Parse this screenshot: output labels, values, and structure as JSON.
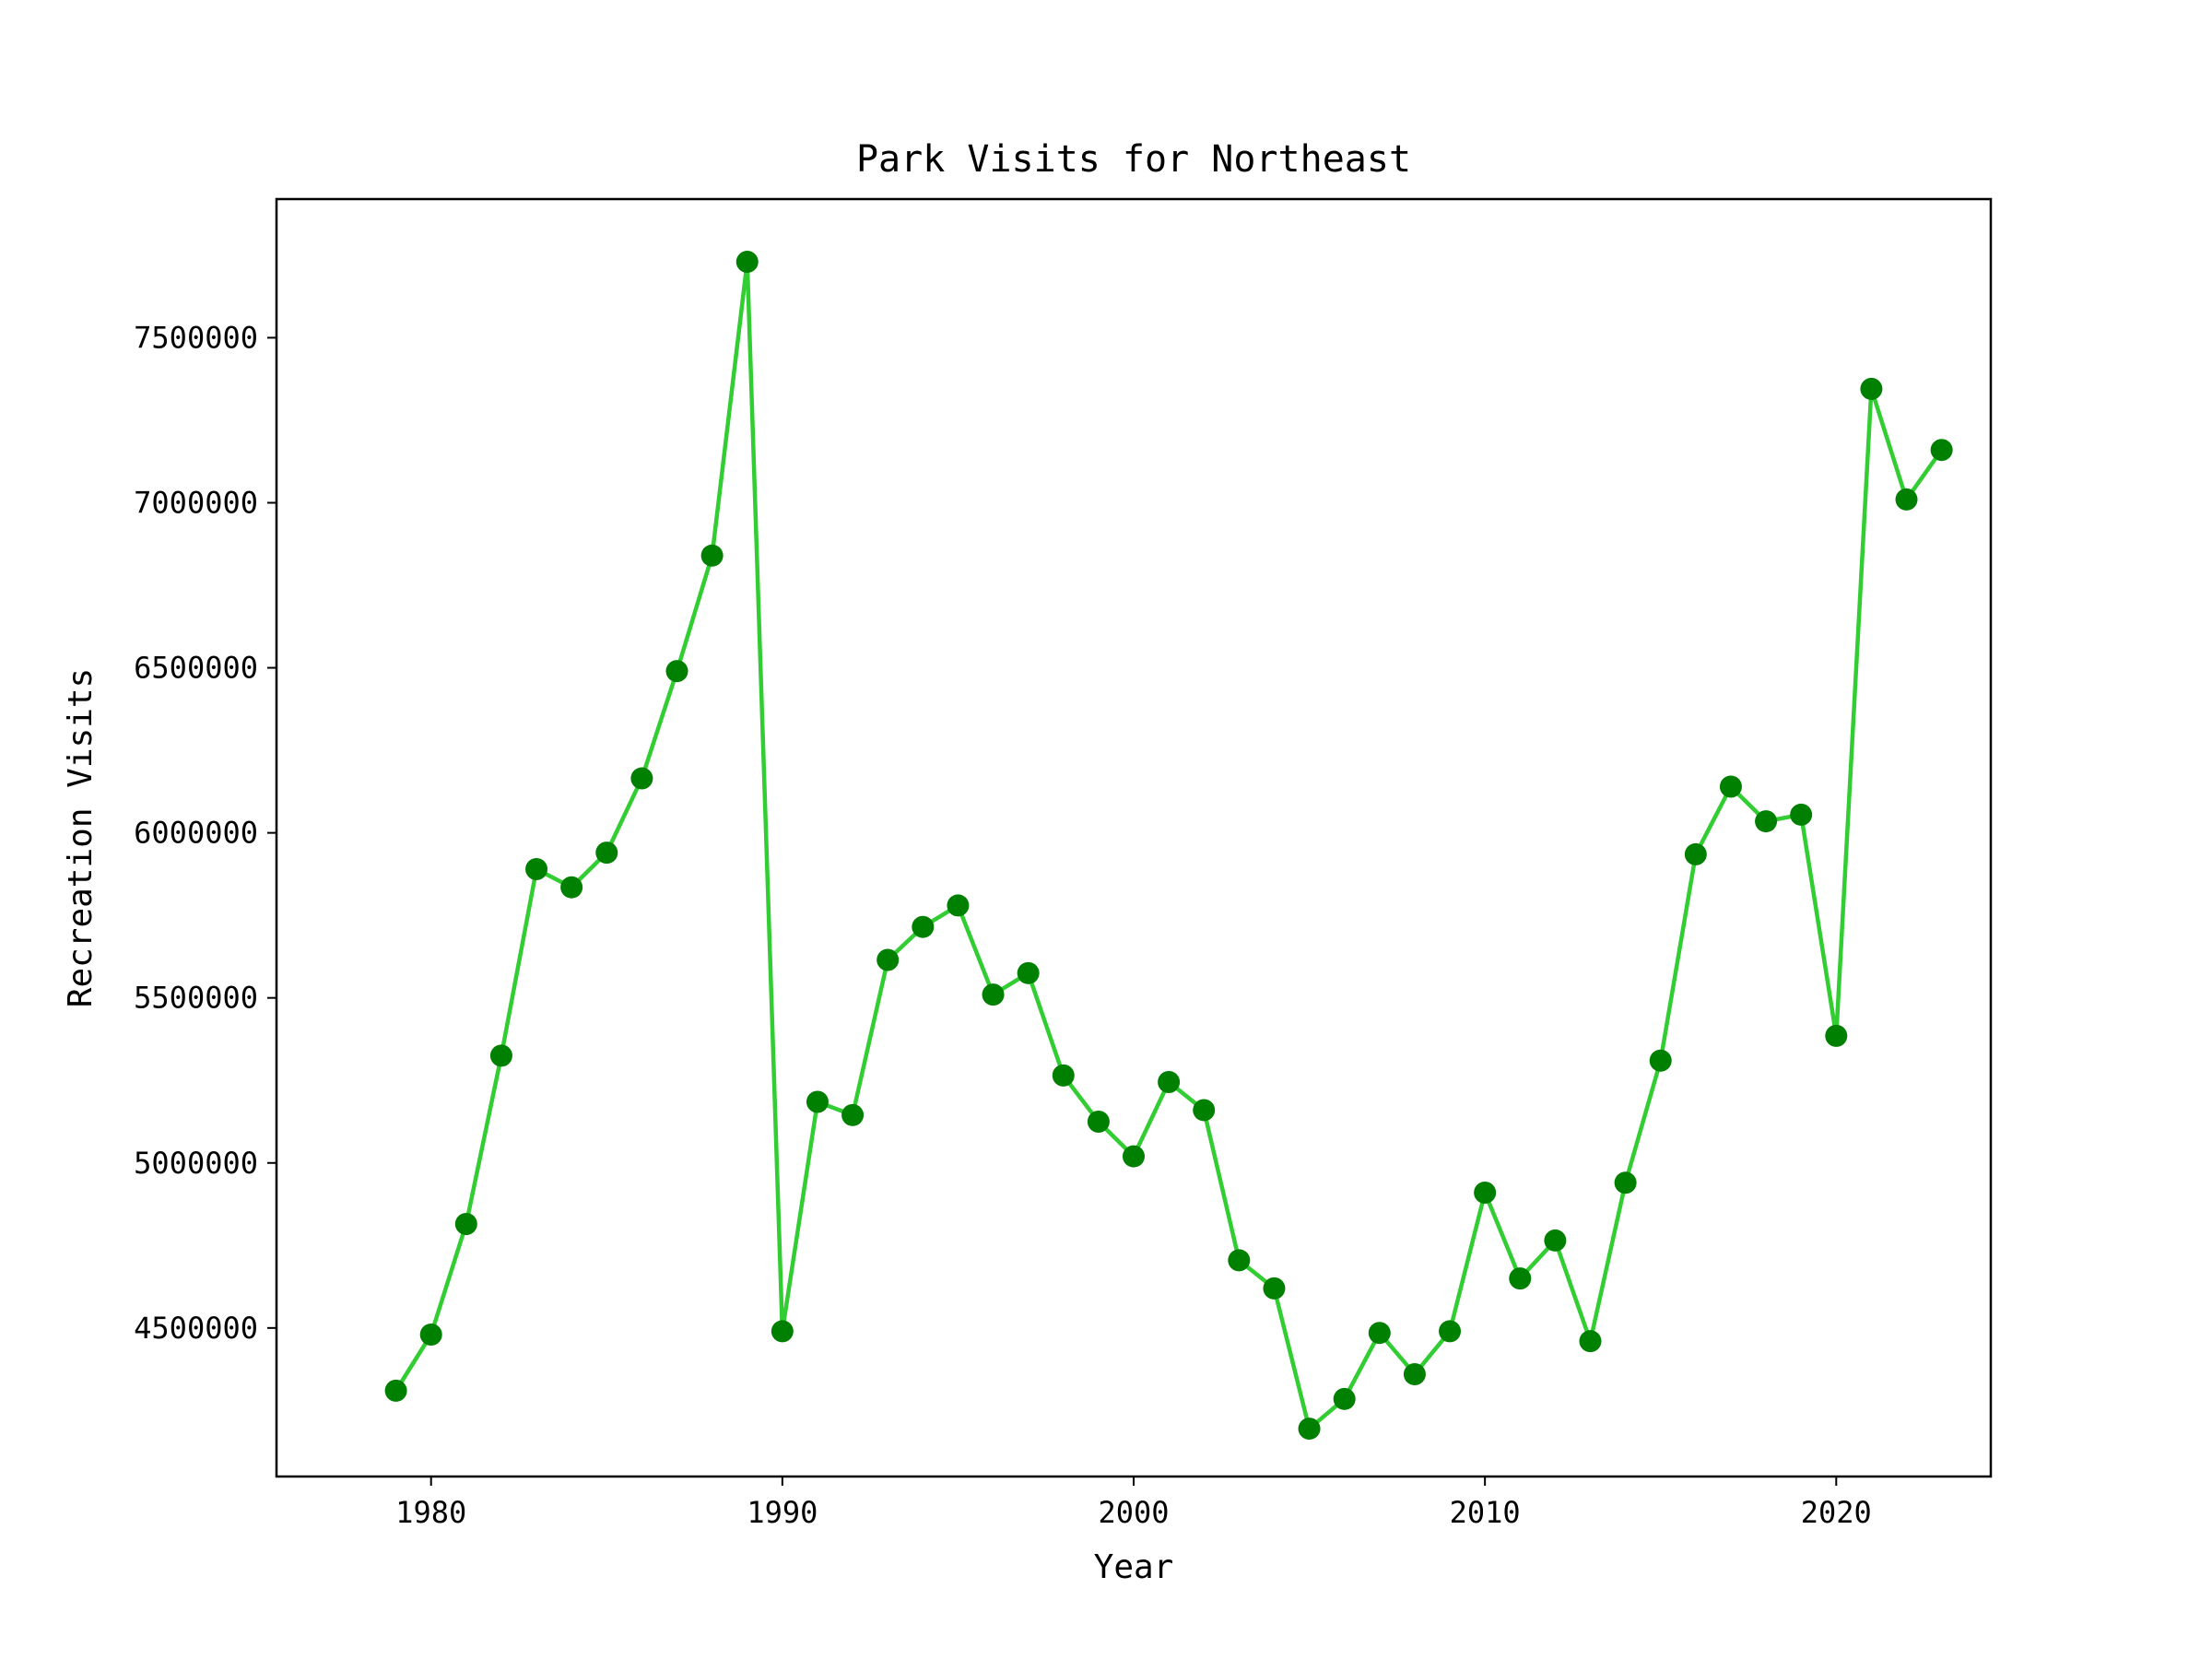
{
  "chart_data": {
    "type": "line",
    "title": "Park Visits for Northeast",
    "xlabel": "Year",
    "ylabel": "Recreation Visits",
    "xlim": [
      1975.6,
      2024.4
    ],
    "ylim": [
      4050000,
      7920000
    ],
    "x_ticks": [
      1980,
      1990,
      2000,
      2010,
      2020
    ],
    "y_ticks": [
      4500000,
      5000000,
      5500000,
      6000000,
      6500000,
      7000000,
      7500000
    ],
    "grid": false,
    "colors": {
      "line": "#32cd32",
      "marker": "#008000",
      "axes": "#000000"
    },
    "series": [
      {
        "x": [
          1979,
          1980,
          1981,
          1982,
          1983,
          1984,
          1985,
          1986,
          1987,
          1988,
          1989,
          1990,
          1991,
          1992,
          1993,
          1994,
          1995,
          1996,
          1997,
          1998,
          1999,
          2000,
          2001,
          2002,
          2003,
          2004,
          2005,
          2006,
          2007,
          2008,
          2009,
          2010,
          2011,
          2012,
          2013,
          2014,
          2015,
          2016,
          2017,
          2018,
          2019,
          2020,
          2021,
          2022,
          2023
        ],
        "values": [
          4310000,
          4480000,
          4815000,
          5325000,
          5890000,
          5835000,
          5940000,
          6165000,
          6490000,
          6840000,
          7730000,
          4490000,
          5185000,
          5145000,
          5615000,
          5715000,
          5780000,
          5510000,
          5575000,
          5265000,
          5125000,
          5020000,
          5245000,
          5160000,
          4705000,
          4620000,
          4195000,
          4285000,
          4485000,
          4360000,
          4490000,
          4910000,
          4650000,
          4765000,
          4460000,
          4940000,
          5310000,
          5935000,
          6140000,
          6035000,
          6055000,
          5385000,
          7345000,
          7010000,
          7160000
        ]
      }
    ]
  }
}
